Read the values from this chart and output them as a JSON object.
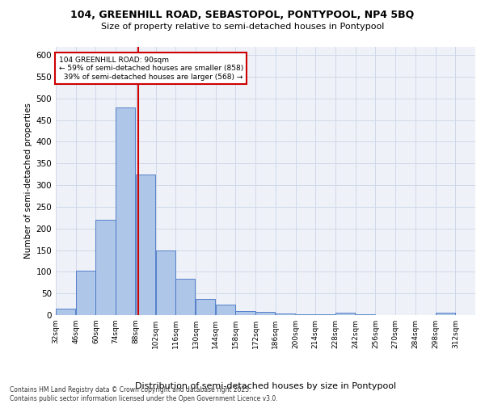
{
  "title_line1": "104, GREENHILL ROAD, SEBASTOPOL, PONTYPOOL, NP4 5BQ",
  "title_line2": "Size of property relative to semi-detached houses in Pontypool",
  "xlabel": "Distribution of semi-detached houses by size in Pontypool",
  "ylabel": "Number of semi-detached properties",
  "bins": [
    "32sqm",
    "46sqm",
    "60sqm",
    "74sqm",
    "88sqm",
    "102sqm",
    "116sqm",
    "130sqm",
    "144sqm",
    "158sqm",
    "172sqm",
    "186sqm",
    "200sqm",
    "214sqm",
    "228sqm",
    "242sqm",
    "256sqm",
    "270sqm",
    "284sqm",
    "298sqm",
    "312sqm"
  ],
  "bin_edges": [
    32,
    46,
    60,
    74,
    88,
    102,
    116,
    130,
    144,
    158,
    172,
    186,
    200,
    214,
    228,
    242,
    256,
    270,
    284,
    298,
    312
  ],
  "values": [
    15,
    103,
    220,
    480,
    325,
    150,
    83,
    38,
    25,
    10,
    7,
    3,
    2,
    1,
    5,
    1,
    0,
    0,
    0,
    5
  ],
  "property_size": 90,
  "pct_smaller": 59,
  "n_smaller": 858,
  "pct_larger": 39,
  "n_larger": 568,
  "bar_color": "#aec6e8",
  "bar_edge_color": "#4472c4",
  "vline_color": "#cc0000",
  "annotation_box_color": "#cc0000",
  "grid_color": "#d0d8e8",
  "background_color": "#eef2f8",
  "ylim": [
    0,
    620
  ],
  "yticks": [
    0,
    50,
    100,
    150,
    200,
    250,
    300,
    350,
    400,
    450,
    500,
    550,
    600
  ],
  "footer": "Contains HM Land Registry data © Crown copyright and database right 2025.\nContains public sector information licensed under the Open Government Licence v3.0."
}
